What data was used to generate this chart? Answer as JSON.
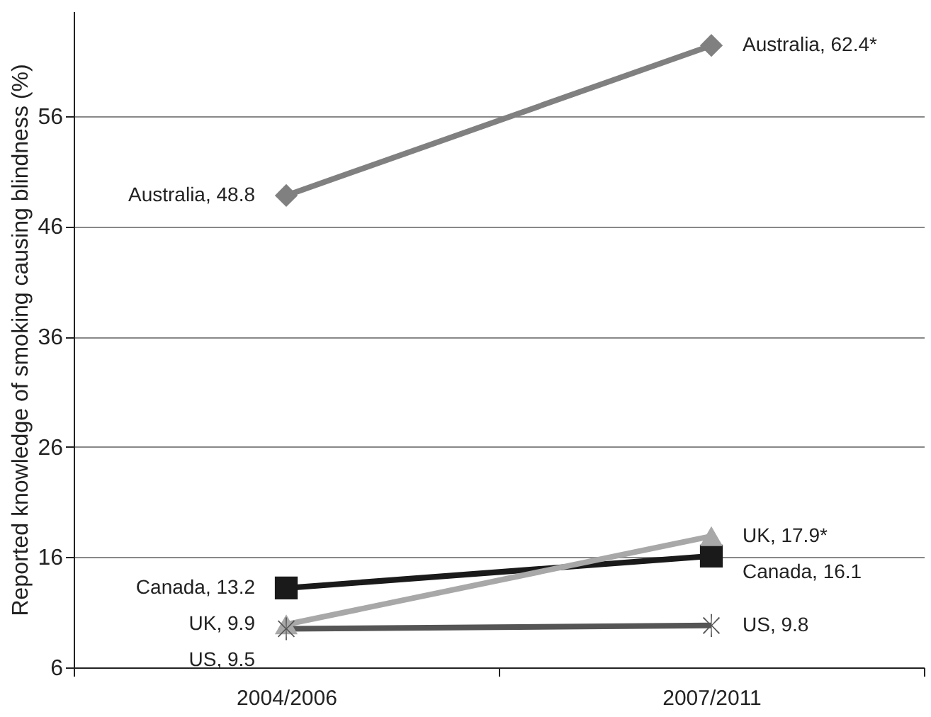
{
  "chart_data": {
    "type": "line",
    "ylabel": "Reported knowledge of smoking causing blindness (%)",
    "categories": [
      "2004/2006",
      "2007/2011"
    ],
    "ylim": [
      6,
      65.5
    ],
    "yticks": [
      6,
      16,
      26,
      36,
      46,
      56
    ],
    "grid": "y",
    "legend": false,
    "line_style": "solid",
    "series": [
      {
        "color": "#808080",
        "marker": "diamond",
        "values": [
          48.8,
          62.4
        ],
        "value_labels": [
          "Australia, 48.8",
          "Australia, 62.4*"
        ]
      },
      {
        "color": "#1a1a1a",
        "marker": "square",
        "values": [
          13.2,
          16.1
        ],
        "value_labels": [
          "Canada, 13.2",
          "Canada, 16.1"
        ]
      },
      {
        "color": "#a8a8a8",
        "marker": "triangle",
        "values": [
          9.9,
          17.9
        ],
        "value_labels": [
          "UK, 9.9",
          "UK, 17.9*"
        ]
      },
      {
        "color": "#555555",
        "marker": "cross",
        "values": [
          9.5,
          9.8
        ],
        "value_labels": [
          "US, 9.5",
          "US, 9.8"
        ]
      }
    ]
  }
}
